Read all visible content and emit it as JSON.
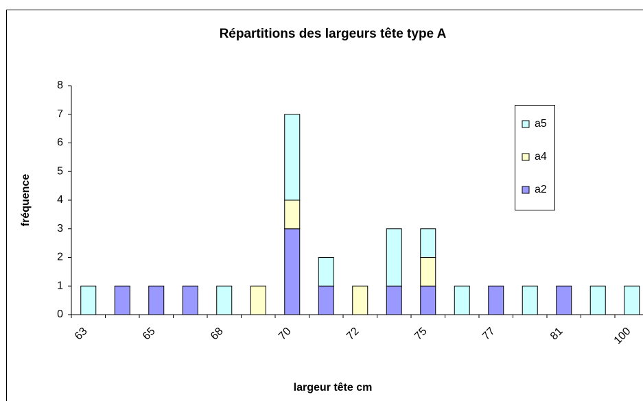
{
  "chart_data": {
    "type": "stacked_bar",
    "title": "Répartitions des largeurs tête type A",
    "x_label": "largeur tête cm",
    "y_label": "fréquence",
    "categories": [
      "63",
      null,
      "65",
      null,
      "68",
      null,
      "70",
      null,
      "72",
      null,
      "75",
      null,
      "77",
      null,
      "81",
      null,
      "100"
    ],
    "series": [
      {
        "name": "a2",
        "color": "#9999ff",
        "values": [
          0,
          1,
          1,
          1,
          0,
          0,
          3,
          1,
          0,
          1,
          1,
          0,
          1,
          0,
          1,
          0,
          0
        ]
      },
      {
        "name": "a4",
        "color": "#ffffcc",
        "values": [
          0,
          0,
          0,
          0,
          0,
          1,
          1,
          0,
          1,
          0,
          1,
          0,
          0,
          0,
          0,
          0,
          0
        ]
      },
      {
        "name": "a5",
        "color": "#ccffff",
        "values": [
          1,
          0,
          0,
          0,
          1,
          0,
          3,
          1,
          0,
          2,
          1,
          1,
          0,
          1,
          0,
          1,
          1
        ]
      }
    ],
    "ylim": [
      0,
      8
    ],
    "yticks": [
      0,
      1,
      2,
      3,
      4,
      5,
      6,
      7,
      8
    ],
    "grid": false,
    "legend": "right"
  }
}
